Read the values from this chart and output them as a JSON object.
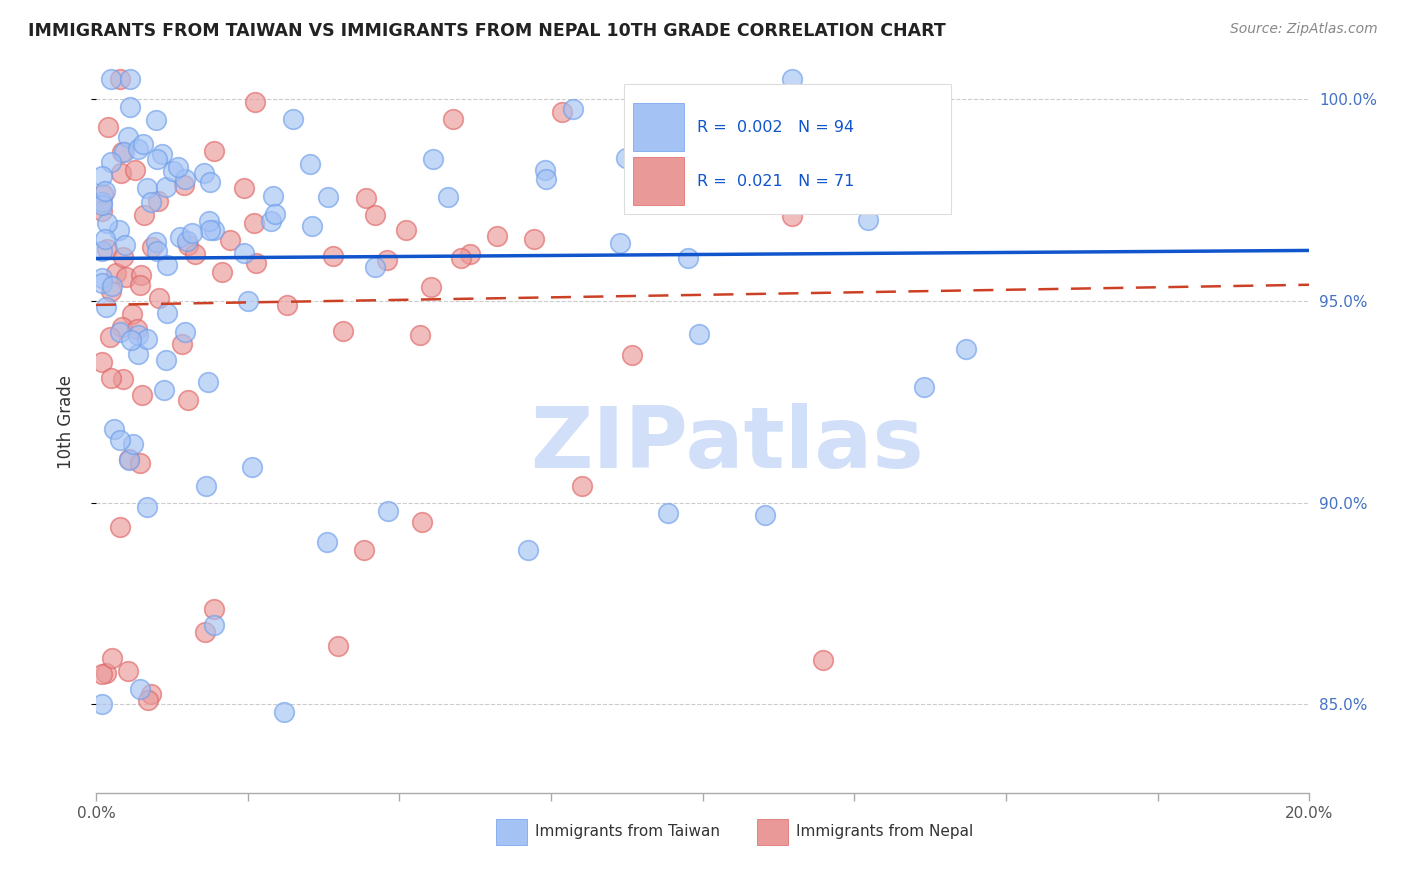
{
  "title": "IMMIGRANTS FROM TAIWAN VS IMMIGRANTS FROM NEPAL 10TH GRADE CORRELATION CHART",
  "source": "Source: ZipAtlas.com",
  "ylabel": "10th Grade",
  "x_min": 0.0,
  "x_max": 0.2,
  "y_min": 0.828,
  "y_max": 1.012,
  "y_ticks": [
    0.85,
    0.9,
    0.95,
    1.0
  ],
  "y_tick_labels": [
    "85.0%",
    "90.0%",
    "95.0%",
    "100.0%"
  ],
  "taiwan_R": 0.002,
  "taiwan_N": 94,
  "nepal_R": 0.021,
  "nepal_N": 71,
  "taiwan_color": "#a4c2f4",
  "taiwan_edge_color": "#6d9eeb",
  "nepal_color": "#ea9999",
  "nepal_edge_color": "#e06666",
  "taiwan_line_color": "#1155cc",
  "nepal_line_color": "#cc4125",
  "taiwan_line_y0": 0.9605,
  "taiwan_line_y1": 0.9625,
  "nepal_line_y0": 0.949,
  "nepal_line_y1": 0.954,
  "watermark_text": "ZIPatlas",
  "watermark_color": "#c9daf8",
  "legend_taiwan_text": "R =  0.002   N = 94",
  "legend_nepal_text": "R =  0.021   N = 71",
  "legend_color": "#1155cc",
  "bottom_legend_taiwan": "Immigrants from Taiwan",
  "bottom_legend_nepal": "Immigrants from Nepal"
}
